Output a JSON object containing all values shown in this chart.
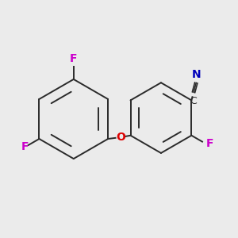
{
  "bg_color": "#ebebeb",
  "bond_color": "#2a2a2a",
  "F_color": "#cc00cc",
  "O_color": "#dd0000",
  "N_color": "#0000bb",
  "C_color": "#2a2a2a",
  "bond_width": 1.4,
  "fig_size": [
    3.0,
    3.0
  ],
  "dpi": 100,
  "F_top_label": "F",
  "F_left_label": "F",
  "O_label": "O",
  "C_label": "C",
  "N_label": "N",
  "F_right_label": "F"
}
